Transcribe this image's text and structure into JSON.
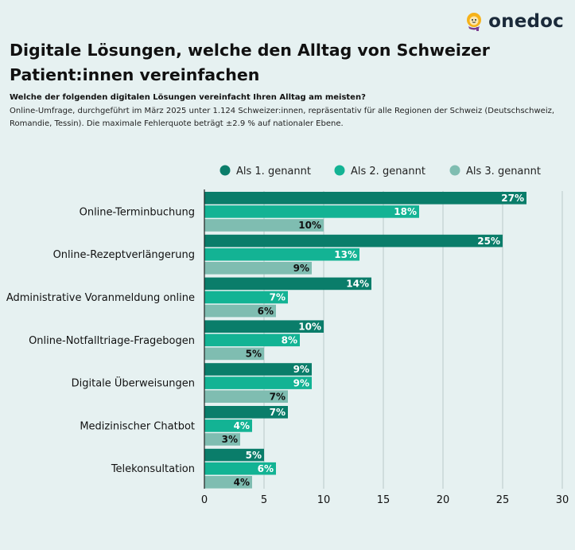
{
  "brand": {
    "name": "onedoc"
  },
  "header": {
    "title": "Digitale Lösungen, welche den Alltag von Schweizer Patient:innen vereinfachen",
    "question": "Welche der folgenden digitalen Lösungen vereinfacht Ihren Alltag am meisten?",
    "description": "Online-Umfrage, durchgeführt im März 2025 unter 1.124 Schweizer:innen, repräsentativ für alle Regionen der Schweiz (Deutschschweiz, Romandie, Tessin). Die maximale Fehlerquote beträgt ±2.9 % auf nationaler Ebene."
  },
  "colors": {
    "series1": "#0a7d6a",
    "series2": "#13b394",
    "series3": "#7fbdb1",
    "grid": "#b9c9c9",
    "axis": "#222222"
  },
  "chart_data": {
    "type": "bar",
    "orientation": "horizontal",
    "categories": [
      "Online-Terminbuchung",
      "Online-Rezeptverlängerung",
      "Administrative Voranmeldung online",
      "Online-Notfalltriage-Fragebogen",
      "Digitale Überweisungen",
      "Medizinischer Chatbot",
      "Telekonsultation"
    ],
    "series": [
      {
        "name": "Als 1. genannt",
        "values": [
          27,
          25,
          14,
          10,
          9,
          7,
          5
        ]
      },
      {
        "name": "Als 2. genannt",
        "values": [
          18,
          13,
          7,
          8,
          9,
          4,
          6
        ]
      },
      {
        "name": "Als 3. genannt",
        "values": [
          10,
          9,
          6,
          5,
          7,
          3,
          4
        ]
      }
    ],
    "xlim": [
      0,
      30
    ],
    "xticks": [
      0,
      5,
      10,
      15,
      20,
      25,
      30
    ],
    "value_suffix": "%",
    "legend_position": "top-right",
    "grid": true
  }
}
